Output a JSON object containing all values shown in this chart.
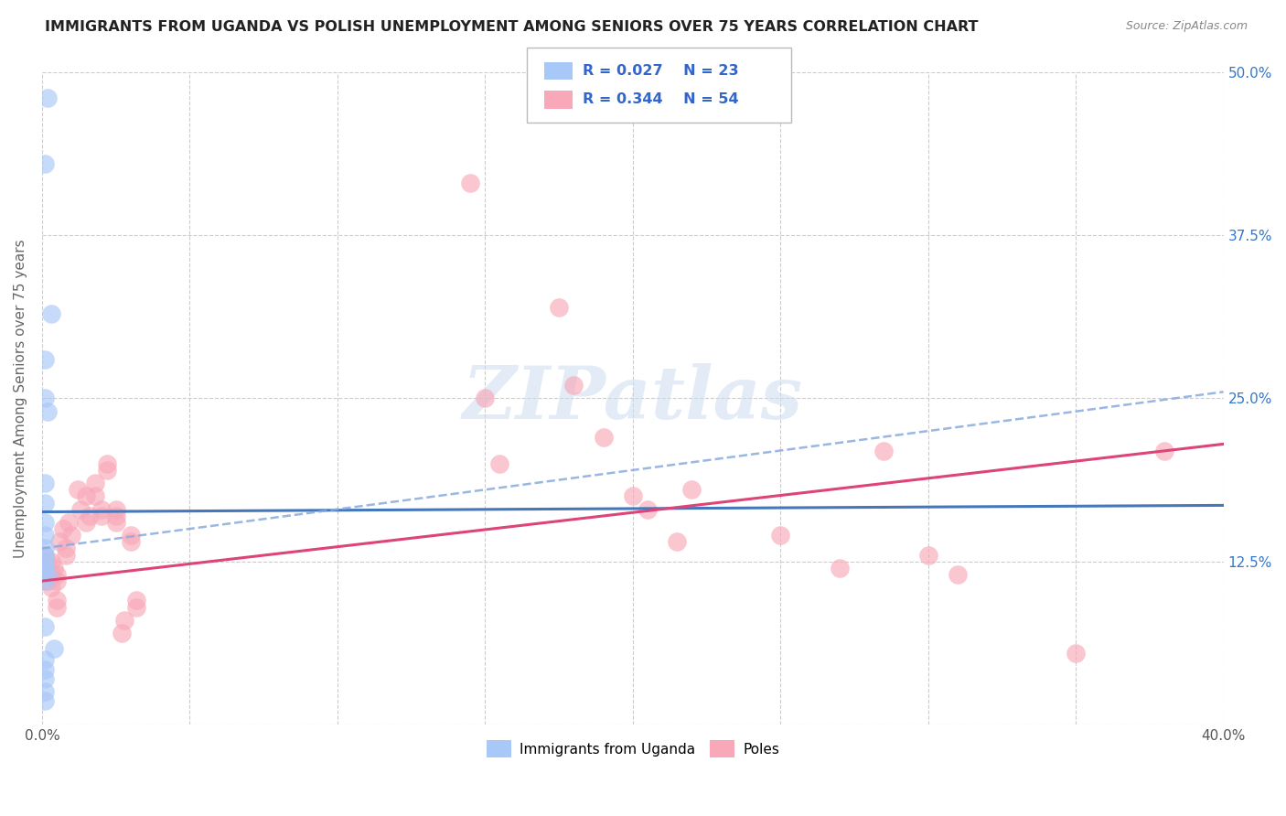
{
  "title": "IMMIGRANTS FROM UGANDA VS POLISH UNEMPLOYMENT AMONG SENIORS OVER 75 YEARS CORRELATION CHART",
  "source": "Source: ZipAtlas.com",
  "ylabel": "Unemployment Among Seniors over 75 years",
  "xlim": [
    0.0,
    0.4
  ],
  "ylim": [
    0.0,
    0.5
  ],
  "color_uganda": "#a8c8f8",
  "color_poles": "#f8a8b8",
  "color_trendline_uganda": "#4477bb",
  "color_trendline_poles": "#dd4477",
  "color_dashed": "#88aadd",
  "uganda_x": [
    0.002,
    0.001,
    0.003,
    0.001,
    0.002,
    0.001,
    0.001,
    0.001,
    0.001,
    0.001,
    0.001,
    0.001,
    0.001,
    0.001,
    0.002,
    0.001,
    0.001,
    0.004,
    0.001,
    0.001,
    0.001,
    0.001,
    0.001
  ],
  "uganda_y": [
    0.48,
    0.43,
    0.315,
    0.28,
    0.24,
    0.25,
    0.185,
    0.17,
    0.155,
    0.145,
    0.135,
    0.13,
    0.125,
    0.12,
    0.115,
    0.11,
    0.075,
    0.058,
    0.05,
    0.042,
    0.035,
    0.025,
    0.018
  ],
  "poles_x": [
    0.001,
    0.002,
    0.003,
    0.002,
    0.004,
    0.003,
    0.003,
    0.005,
    0.005,
    0.005,
    0.005,
    0.006,
    0.007,
    0.008,
    0.008,
    0.009,
    0.01,
    0.012,
    0.013,
    0.015,
    0.015,
    0.016,
    0.018,
    0.018,
    0.02,
    0.02,
    0.022,
    0.022,
    0.025,
    0.025,
    0.025,
    0.027,
    0.028,
    0.03,
    0.03,
    0.032,
    0.032,
    0.145,
    0.15,
    0.155,
    0.175,
    0.18,
    0.19,
    0.2,
    0.205,
    0.215,
    0.22,
    0.25,
    0.27,
    0.285,
    0.3,
    0.31,
    0.35,
    0.38
  ],
  "poles_y": [
    0.13,
    0.125,
    0.115,
    0.11,
    0.12,
    0.125,
    0.105,
    0.11,
    0.115,
    0.095,
    0.09,
    0.14,
    0.15,
    0.13,
    0.135,
    0.155,
    0.145,
    0.18,
    0.165,
    0.175,
    0.155,
    0.16,
    0.185,
    0.175,
    0.16,
    0.165,
    0.2,
    0.195,
    0.165,
    0.155,
    0.16,
    0.07,
    0.08,
    0.145,
    0.14,
    0.09,
    0.095,
    0.415,
    0.25,
    0.2,
    0.32,
    0.26,
    0.22,
    0.175,
    0.165,
    0.14,
    0.18,
    0.145,
    0.12,
    0.21,
    0.13,
    0.115,
    0.055,
    0.21
  ],
  "uganda_trendline": [
    0.0,
    0.4,
    0.163,
    0.168
  ],
  "poles_trendline": [
    0.0,
    0.4,
    0.11,
    0.215
  ],
  "dashed_line": [
    0.0,
    0.4,
    0.135,
    0.255
  ],
  "background_color": "#ffffff"
}
